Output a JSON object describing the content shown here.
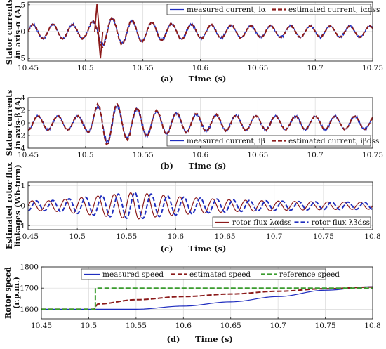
{
  "chart_data": [
    {
      "id": "a",
      "type": "line",
      "caption_letter": "(a)",
      "xlabel": "Time (s)",
      "ylabel_lines": [
        "Stator currents",
        "in axis-α (A)"
      ],
      "xlim": [
        10.45,
        10.75
      ],
      "ylim": [
        -5.5,
        5.5
      ],
      "xticks": [
        "10.45",
        "10.5",
        "10.55",
        "10.6",
        "10.65",
        "10.7",
        "10.75"
      ],
      "yticks": [
        "5",
        "0",
        "-5"
      ],
      "grid": true,
      "legend_placement": "top-right",
      "series": [
        {
          "name": "measured current, iα",
          "color": "#1f2dbf",
          "style": "solid",
          "description_params": {
            "freq_hz": 58,
            "amp_before": 1.3,
            "amp_peak": 2.6,
            "amp_after": 1.0,
            "offset": 0
          }
        },
        {
          "name": "estimated current, iαdss",
          "color": "#8b1a1a",
          "style": "dashed",
          "description_params": {
            "freq_hz": 58,
            "amp_before": 1.3,
            "amp_peak": 2.9,
            "amp_after": 1.0,
            "offset": 0
          }
        }
      ],
      "annotations": [
        {
          "x": 10.51,
          "y": 5.2,
          "note": "spike"
        },
        {
          "x": 10.513,
          "y": -5.0,
          "note": "dip"
        }
      ]
    },
    {
      "id": "b",
      "type": "line",
      "caption_letter": "(b)",
      "xlabel": "Time (s)",
      "ylabel_lines": [
        "Stator currents",
        "in axis-β (A)"
      ],
      "xlim": [
        10.45,
        10.75
      ],
      "ylim": [
        -4,
        4
      ],
      "xticks": [
        "10.45",
        "10.5",
        "10.55",
        "10.6",
        "10.65",
        "10.7",
        "10.75"
      ],
      "yticks": [
        "4",
        "2",
        "0",
        "-2",
        "-4"
      ],
      "grid": true,
      "legend_placement": "bottom-right",
      "series": [
        {
          "name": "measured current, iβ",
          "color": "#1f2dbf",
          "style": "solid",
          "description_params": {
            "freq_hz": 58,
            "amp_before": 1.1,
            "amp_peak": 3.2,
            "amp_after": 1.0,
            "offset": 0
          }
        },
        {
          "name": "estimated current, iβdss",
          "color": "#8b1a1a",
          "style": "dashed",
          "description_params": {
            "freq_hz": 58,
            "amp_before": 1.1,
            "amp_peak": 3.6,
            "amp_after": 1.0,
            "offset": 0
          }
        }
      ]
    },
    {
      "id": "c",
      "type": "line",
      "caption_letter": "(c)",
      "xlabel": "Time (s)",
      "ylabel_lines": [
        "Estimated rotor flux",
        "linkages (Wb-turn)"
      ],
      "xlim": [
        10.45,
        10.8
      ],
      "ylim": [
        -1.2,
        1.2
      ],
      "xticks": [
        "10.45",
        "10.5",
        "10.55",
        "10.6",
        "10.65",
        "10.7",
        "10.75",
        "10.8"
      ],
      "yticks": [
        "1",
        "0",
        "-1"
      ],
      "grid": true,
      "legend_placement": "bottom-right",
      "series": [
        {
          "name": "rotor flux λαdss",
          "color": "#8b1a1a",
          "style": "solid",
          "description_params": {
            "freq_hz": 60,
            "amp_start": 0.25,
            "amp_peak": 0.68,
            "peak_x": 10.56,
            "amp_end": 0.15
          }
        },
        {
          "name": "rotor flux λβdss",
          "color": "#1f2dbf",
          "style": "dashed",
          "description_params": {
            "freq_hz": 60,
            "amp_start": 0.25,
            "amp_peak": 0.68,
            "peak_x": 10.56,
            "amp_end": 0.15
          }
        }
      ]
    },
    {
      "id": "d",
      "type": "line",
      "caption_letter": "(d)",
      "xlabel": "Time (s)",
      "ylabel_lines": [
        "Rotor speed",
        "(r.p.m.)"
      ],
      "xlim": [
        10.45,
        10.8
      ],
      "ylim": [
        1555,
        1800
      ],
      "xticks": [
        "10.45",
        "10.5",
        "10.55",
        "10.6",
        "10.65",
        "10.7",
        "10.75",
        "10.8"
      ],
      "yticks": [
        "1800",
        "1700",
        "1600"
      ],
      "grid": true,
      "legend_placement": "top",
      "series": [
        {
          "name": "measured speed",
          "color": "#1f2dbf",
          "style": "solid",
          "points": [
            [
              10.45,
              1600
            ],
            [
              10.5,
              1600
            ],
            [
              10.55,
              1600
            ],
            [
              10.6,
              1615
            ],
            [
              10.65,
              1635
            ],
            [
              10.7,
              1660
            ],
            [
              10.75,
              1690
            ],
            [
              10.8,
              1707
            ]
          ]
        },
        {
          "name": "estimated speed",
          "color": "#8b1a1a",
          "style": "dashed",
          "points": [
            [
              10.45,
              1600
            ],
            [
              10.505,
              1600
            ],
            [
              10.51,
              1625
            ],
            [
              10.55,
              1645
            ],
            [
              10.6,
              1660
            ],
            [
              10.65,
              1672
            ],
            [
              10.7,
              1685
            ],
            [
              10.75,
              1697
            ],
            [
              10.8,
              1705
            ]
          ]
        },
        {
          "name": "reference speed",
          "color": "#3a9c2e",
          "style": "dashed",
          "points": [
            [
              10.45,
              1600
            ],
            [
              10.507,
              1600
            ],
            [
              10.507,
              1700
            ],
            [
              10.8,
              1700
            ]
          ]
        }
      ]
    }
  ]
}
